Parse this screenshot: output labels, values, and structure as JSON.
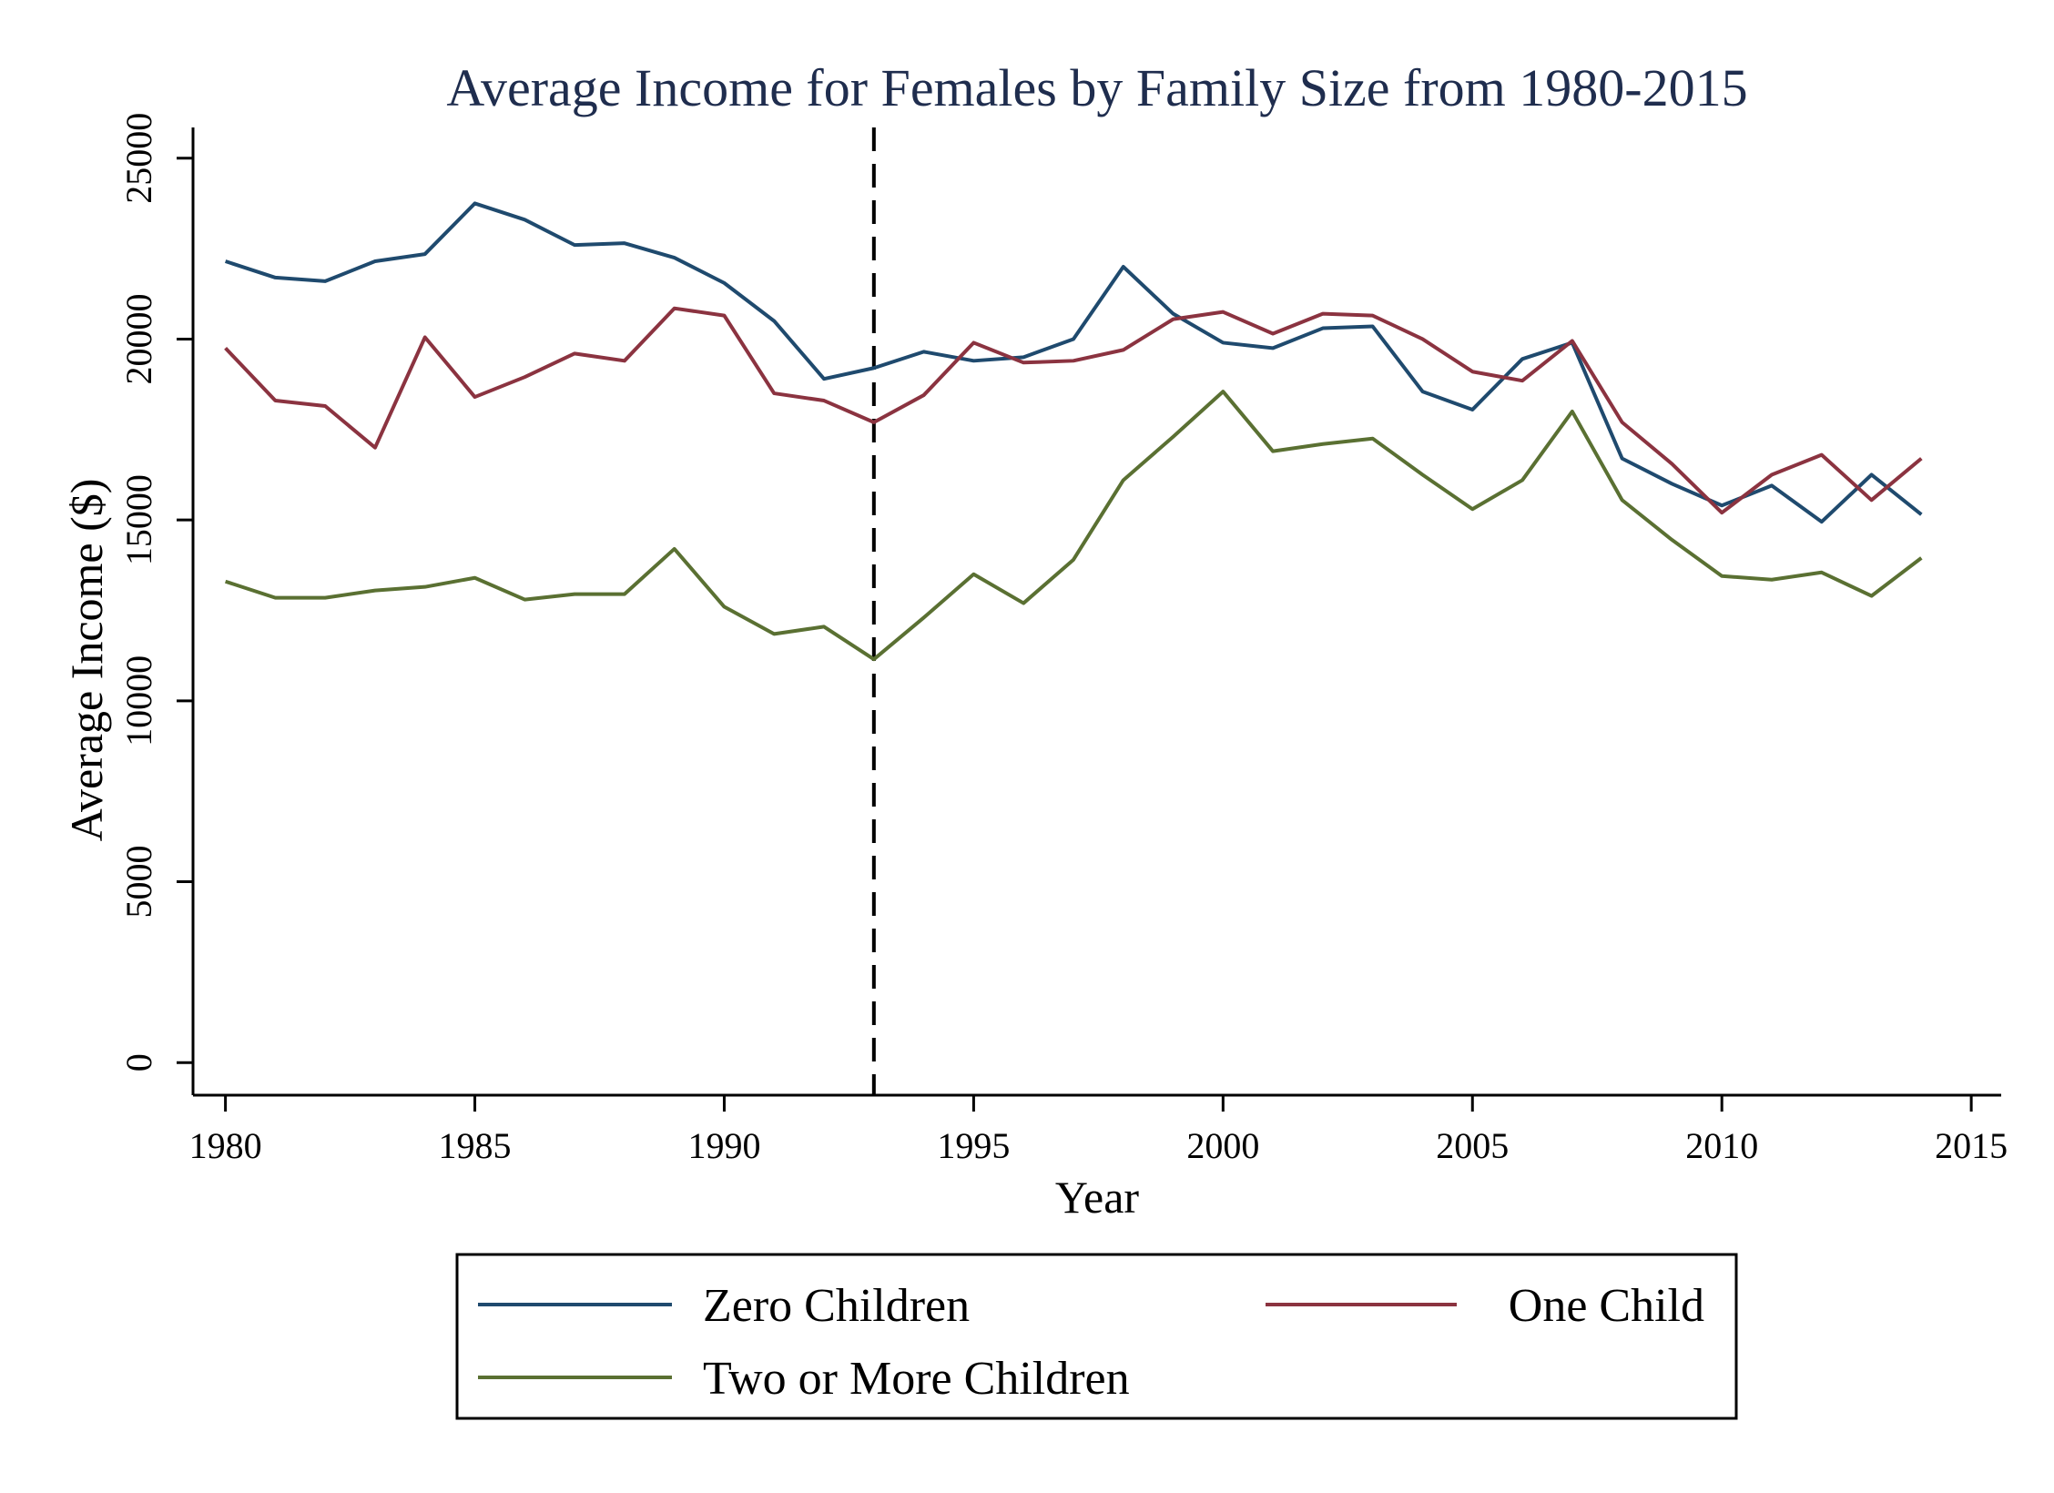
{
  "colors": {
    "title": "#1f2d4e",
    "axis": "#000000",
    "background": "#ffffff"
  },
  "chart_data": {
    "type": "line",
    "title": "Average Income for Females by Family Size from 1980-2015",
    "xlabel": "Year",
    "ylabel": "Average Income ($)",
    "xlim": [
      1979.35,
      2015.6
    ],
    "ylim": [
      -900,
      25850
    ],
    "x_ticks": [
      1980,
      1985,
      1990,
      1995,
      2000,
      2005,
      2010,
      2015
    ],
    "y_ticks": [
      0,
      5000,
      10000,
      15000,
      20000,
      25000
    ],
    "grid": false,
    "legend_position": "bottom",
    "vertical_reference_line": {
      "x": 1993,
      "style": "dashed"
    },
    "x": [
      1980,
      1981,
      1982,
      1983,
      1984,
      1985,
      1986,
      1987,
      1988,
      1989,
      1990,
      1991,
      1992,
      1993,
      1994,
      1995,
      1996,
      1997,
      1998,
      1999,
      2000,
      2001,
      2002,
      2003,
      2004,
      2005,
      2006,
      2007,
      2008,
      2009,
      2010,
      2011,
      2012,
      2013,
      2014
    ],
    "series": [
      {
        "name": "Zero Children",
        "color": "#1f4a6e",
        "values": [
          22150,
          21700,
          21600,
          22150,
          22350,
          23750,
          23300,
          22600,
          22650,
          22250,
          21550,
          20500,
          18900,
          19200,
          19650,
          19400,
          19500,
          20000,
          22000,
          20700,
          19900,
          19750,
          20300,
          20350,
          18550,
          18050,
          19450,
          19900,
          16700,
          16000,
          15400,
          15950,
          14950,
          16250,
          15150
        ]
      },
      {
        "name": "One Child",
        "color": "#8b3340",
        "values": [
          19750,
          18300,
          18150,
          17000,
          20050,
          18400,
          18950,
          19600,
          19400,
          20850,
          20650,
          18500,
          18300,
          17700,
          18450,
          19900,
          19350,
          19400,
          19700,
          20550,
          20750,
          20150,
          20700,
          20650,
          20000,
          19100,
          18850,
          19950,
          17700,
          16550,
          15200,
          16250,
          16800,
          15550,
          16700
        ]
      },
      {
        "name": "Two or More Children",
        "color": "#5a7032",
        "values": [
          13300,
          12850,
          12850,
          13050,
          13150,
          13400,
          12800,
          12950,
          12950,
          14200,
          12600,
          11850,
          12050,
          11150,
          12300,
          13500,
          12700,
          13900,
          16100,
          17300,
          18550,
          16900,
          17100,
          17250,
          16250,
          15300,
          16100,
          18000,
          15550,
          14450,
          13450,
          13350,
          13550,
          12900,
          13950
        ]
      }
    ]
  }
}
